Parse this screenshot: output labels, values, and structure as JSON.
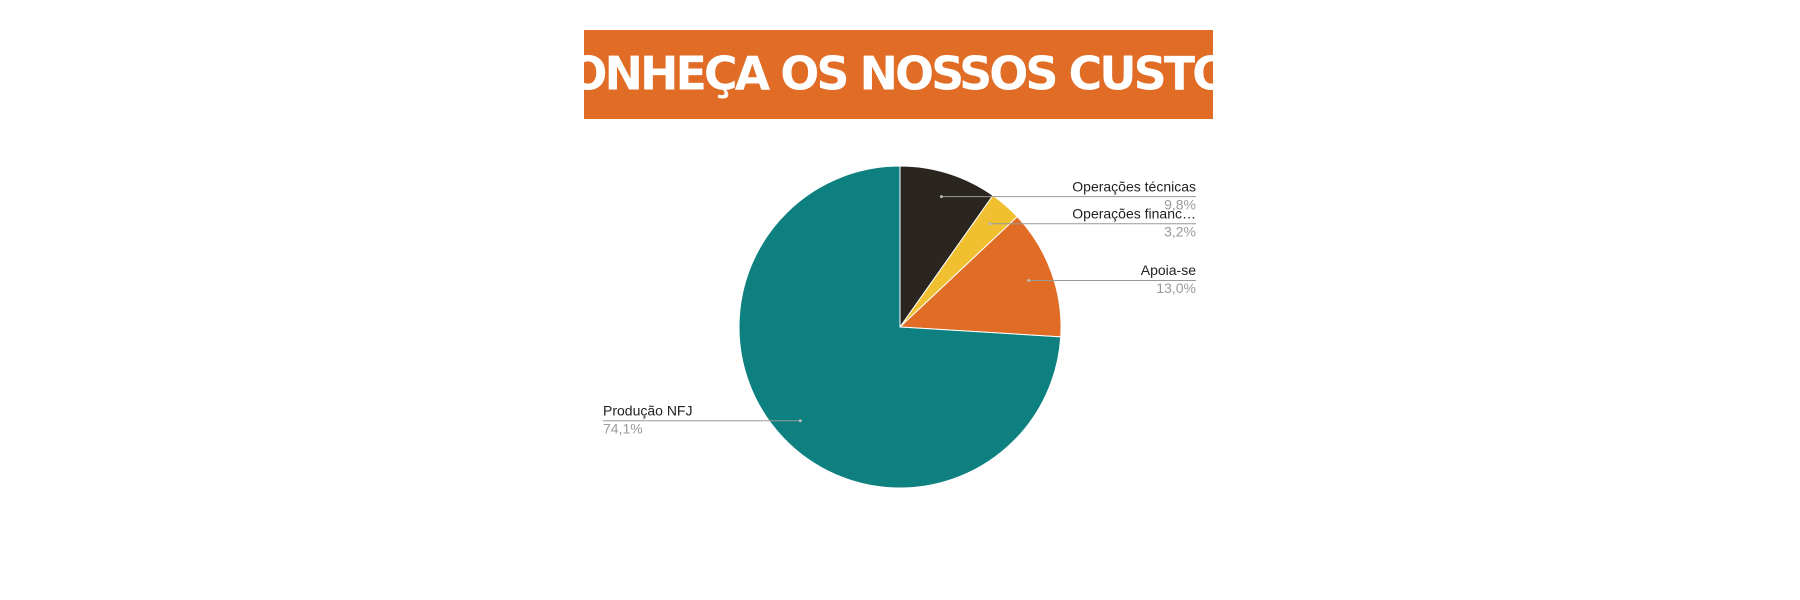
{
  "chart_data": {
    "type": "pie",
    "title": "CONHEÇA OS NOSSOS CUSTOS",
    "categories": [
      "Operações técnicas",
      "Operações financ…",
      "Apoia-se",
      "Produção NFJ"
    ],
    "values": [
      9.8,
      3.2,
      13.0,
      74.1
    ],
    "value_labels": [
      "9,8%",
      "3,2%",
      "13,0%",
      "74,1%"
    ],
    "colors": [
      "#2b2520",
      "#f0c030",
      "#e06c26",
      "#0e8080"
    ]
  }
}
